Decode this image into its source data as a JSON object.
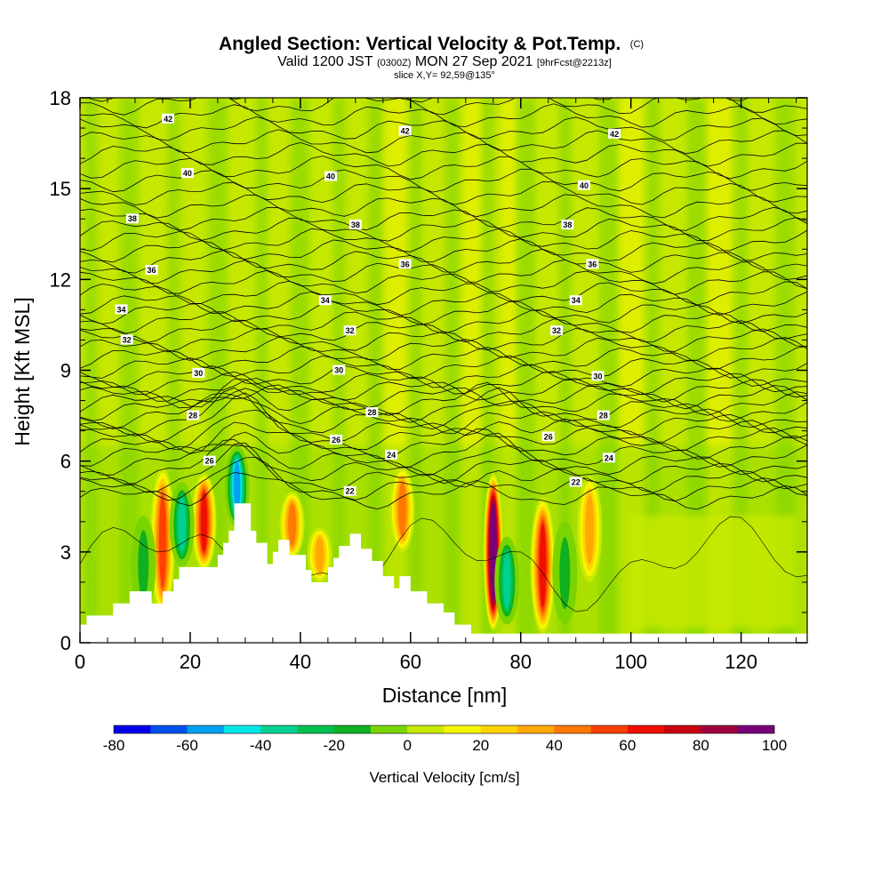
{
  "title": {
    "main": "Angled Section: Vertical Velocity & Pot.Temp.",
    "main_unit": "(C)",
    "sub_a": "Valid 1200 JST",
    "sub_b": "(0300Z)",
    "sub_c": "MON 27 Sep 2021",
    "sub_d": "[9hrFcst@2213z]",
    "slice": "slice X,Y= 92,59@135°"
  },
  "chart_data": {
    "type": "heatmap",
    "xlabel": "Distance [nm]",
    "ylabel": "Height [Kft MSL]",
    "xlim": [
      0,
      132
    ],
    "ylim": [
      0,
      18
    ],
    "x_ticks": [
      "0",
      "20",
      "40",
      "60",
      "80",
      "100",
      "120"
    ],
    "y_ticks": [
      "0",
      "3",
      "6",
      "9",
      "12",
      "15",
      "18"
    ],
    "colorbar": {
      "label": "Vertical Velocity [cm/s]",
      "ticks": [
        "-80",
        "-60",
        "-40",
        "-20",
        "0",
        "20",
        "40",
        "60",
        "80",
        "100"
      ],
      "range": [
        -80,
        100
      ],
      "colors": [
        "#0000ee",
        "#0050f0",
        "#00a0f0",
        "#00e8e8",
        "#00d090",
        "#00c050",
        "#10b020",
        "#7ad400",
        "#c8ea00",
        "#f6f600",
        "#ffd200",
        "#ffa800",
        "#ff7800",
        "#ff4000",
        "#f01000",
        "#c80010",
        "#a00040",
        "#780078"
      ]
    },
    "contours": {
      "field": "Potential temperature (C)",
      "levels": [
        22,
        24,
        26,
        28,
        30,
        32,
        34,
        36,
        38,
        40,
        42
      ],
      "labels": [
        {
          "x": 16,
          "y": 17.3,
          "text": "42"
        },
        {
          "x": 59,
          "y": 16.9,
          "text": "42"
        },
        {
          "x": 97,
          "y": 16.8,
          "text": "42"
        },
        {
          "x": 19.5,
          "y": 15.5,
          "text": "40"
        },
        {
          "x": 45.5,
          "y": 15.4,
          "text": "40"
        },
        {
          "x": 91.5,
          "y": 15.1,
          "text": "40"
        },
        {
          "x": 9.5,
          "y": 14.0,
          "text": "38"
        },
        {
          "x": 50,
          "y": 13.8,
          "text": "38"
        },
        {
          "x": 88.5,
          "y": 13.8,
          "text": "38"
        },
        {
          "x": 13,
          "y": 12.3,
          "text": "36"
        },
        {
          "x": 59,
          "y": 12.5,
          "text": "36"
        },
        {
          "x": 93,
          "y": 12.5,
          "text": "36"
        },
        {
          "x": 7.5,
          "y": 11.0,
          "text": "34"
        },
        {
          "x": 44.5,
          "y": 11.3,
          "text": "34"
        },
        {
          "x": 90,
          "y": 11.3,
          "text": "34"
        },
        {
          "x": 8.5,
          "y": 10.0,
          "text": "32"
        },
        {
          "x": 49,
          "y": 10.3,
          "text": "32"
        },
        {
          "x": 86.5,
          "y": 10.3,
          "text": "32"
        },
        {
          "x": 21.5,
          "y": 8.9,
          "text": "30"
        },
        {
          "x": 47,
          "y": 9.0,
          "text": "30"
        },
        {
          "x": 94,
          "y": 8.8,
          "text": "30"
        },
        {
          "x": 20.5,
          "y": 7.5,
          "text": "28"
        },
        {
          "x": 53,
          "y": 7.6,
          "text": "28"
        },
        {
          "x": 95,
          "y": 7.5,
          "text": "28"
        },
        {
          "x": 23.5,
          "y": 6.0,
          "text": "26"
        },
        {
          "x": 46.5,
          "y": 6.7,
          "text": "26"
        },
        {
          "x": 85,
          "y": 6.8,
          "text": "26"
        },
        {
          "x": 56.5,
          "y": 6.2,
          "text": "24"
        },
        {
          "x": 96,
          "y": 6.1,
          "text": "24"
        },
        {
          "x": 49,
          "y": 5.0,
          "text": "22"
        },
        {
          "x": 90,
          "y": 5.3,
          "text": "22"
        }
      ]
    },
    "updrafts": [
      {
        "x": 15,
        "z0": 0.9,
        "z1": 5.8,
        "w": 45
      },
      {
        "x": 22.5,
        "z0": 2.4,
        "z1": 5.6,
        "w": 55
      },
      {
        "x": 38.5,
        "z0": 2.8,
        "z1": 5.0,
        "w": 35
      },
      {
        "x": 43.5,
        "z0": 2.0,
        "z1": 3.8,
        "w": 30
      },
      {
        "x": 58.5,
        "z0": 3.0,
        "z1": 5.8,
        "w": 40
      },
      {
        "x": 75,
        "z0": 0.4,
        "z1": 5.6,
        "w": 100
      },
      {
        "x": 84,
        "z0": 0.3,
        "z1": 4.8,
        "w": 55
      },
      {
        "x": 92.5,
        "z0": 2.0,
        "z1": 5.5,
        "w": 25
      }
    ],
    "downdrafts": [
      {
        "x": 11.5,
        "z0": 1.0,
        "z1": 4.2,
        "w": -15
      },
      {
        "x": 18.5,
        "z0": 2.5,
        "z1": 5.3,
        "w": -35
      },
      {
        "x": 28.5,
        "z0": 3.8,
        "z1": 6.5,
        "w": -60
      },
      {
        "x": 77.5,
        "z0": 0.6,
        "z1": 3.5,
        "w": -40
      },
      {
        "x": 88,
        "z0": 0.6,
        "z1": 4.0,
        "w": -20
      }
    ],
    "terrain": [
      [
        0,
        0.6
      ],
      [
        1.2,
        0.6
      ],
      [
        1.2,
        0.9
      ],
      [
        6,
        0.9
      ],
      [
        6,
        1.3
      ],
      [
        9,
        1.3
      ],
      [
        9,
        1.7
      ],
      [
        13,
        1.7
      ],
      [
        13,
        1.3
      ],
      [
        15,
        1.3
      ],
      [
        15,
        1.7
      ],
      [
        17,
        1.7
      ],
      [
        17,
        2.1
      ],
      [
        18,
        2.1
      ],
      [
        18,
        2.5
      ],
      [
        25,
        2.5
      ],
      [
        25,
        2.9
      ],
      [
        26,
        2.9
      ],
      [
        26,
        3.3
      ],
      [
        27,
        3.3
      ],
      [
        27,
        3.7
      ],
      [
        28,
        3.7
      ],
      [
        28,
        4.6
      ],
      [
        31,
        4.6
      ],
      [
        31,
        3.7
      ],
      [
        32,
        3.7
      ],
      [
        32,
        3.3
      ],
      [
        34,
        3.3
      ],
      [
        34,
        2.6
      ],
      [
        35,
        2.6
      ],
      [
        35,
        3.0
      ],
      [
        36,
        3.0
      ],
      [
        36,
        3.4
      ],
      [
        38,
        3.4
      ],
      [
        38,
        2.9
      ],
      [
        41,
        2.9
      ],
      [
        41,
        2.4
      ],
      [
        42,
        2.4
      ],
      [
        42,
        2.0
      ],
      [
        45,
        2.0
      ],
      [
        45,
        2.5
      ],
      [
        46,
        2.5
      ],
      [
        46,
        2.8
      ],
      [
        47,
        2.8
      ],
      [
        47,
        3.2
      ],
      [
        49,
        3.2
      ],
      [
        49,
        3.6
      ],
      [
        51,
        3.6
      ],
      [
        51,
        3.1
      ],
      [
        53,
        3.1
      ],
      [
        53,
        2.7
      ],
      [
        55,
        2.7
      ],
      [
        55,
        2.2
      ],
      [
        57,
        2.2
      ],
      [
        57,
        1.8
      ],
      [
        58,
        1.8
      ],
      [
        58,
        2.2
      ],
      [
        60,
        2.2
      ],
      [
        60,
        1.7
      ],
      [
        63,
        1.7
      ],
      [
        63,
        1.3
      ],
      [
        66,
        1.3
      ],
      [
        66,
        1.0
      ],
      [
        68,
        1.0
      ],
      [
        68,
        0.6
      ],
      [
        71,
        0.6
      ],
      [
        71,
        0.3
      ],
      [
        132,
        0.3
      ]
    ]
  }
}
